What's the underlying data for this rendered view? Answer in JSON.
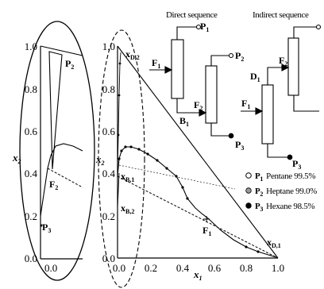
{
  "left_plot": {
    "y_axis_label": "x",
    "y_axis_label_sub": "2",
    "y_ticks": [
      "0.0",
      "0.2",
      "0.4",
      "0.6",
      "0.8",
      "1.0"
    ],
    "x_tick": "0.0",
    "points": {
      "p2": "P",
      "p2_sub": "2",
      "f2": "F",
      "f2_sub": "2",
      "p3": "P",
      "p3_sub": "3"
    }
  },
  "main_plot": {
    "y_axis_label": "x",
    "y_axis_label_sub": "2",
    "x_axis_label": "x",
    "x_axis_label_sub": "1",
    "y_ticks": [
      "0.0",
      "0.2",
      "0.4",
      "0.6",
      "0.8",
      "1.0"
    ],
    "x_ticks": [
      "0.0",
      "0.2",
      "0.4",
      "0.6",
      "0.8",
      "1.0"
    ],
    "points": {
      "xd2": "x",
      "xd2_sub": "D,2",
      "xb1": "x",
      "xb1_sub": "B,1",
      "xb2": "x",
      "xb2_sub": "B,2",
      "xd1": "x",
      "xd1_sub": "D,1",
      "f1": "F",
      "f1_sub": "1",
      "f2": "F",
      "f2_sub": "2"
    }
  },
  "direct_sequence": {
    "title": "Direct sequence",
    "labels": {
      "f1": "F",
      "f1_sub": "1",
      "b1": "B",
      "b1_sub": "1",
      "f2": "F",
      "f2_sub": "2",
      "p1": "P",
      "p1_sub": "1",
      "p2": "P",
      "p2_sub": "2",
      "p3": "P",
      "p3_sub": "3"
    }
  },
  "indirect_sequence": {
    "title": "Indirect sequence",
    "labels": {
      "f1": "F",
      "f1_sub": "1",
      "d1": "D",
      "d1_sub": "1",
      "f2": "F",
      "f2_sub": "2",
      "p3": "P",
      "p3_sub": "3"
    }
  },
  "legend": [
    {
      "symbol": "P",
      "sub": "1",
      "text": "Pentane 99.5%",
      "marker": "open-circle"
    },
    {
      "symbol": "P",
      "sub": "2",
      "text": "Heptane 99.0%",
      "marker": "grey-circle"
    },
    {
      "symbol": "P",
      "sub": "3",
      "text": "Hexane 98.5%",
      "marker": "filled-circle"
    }
  ],
  "colors": {
    "line": "#000000",
    "legend_grey": "#9a9a9a",
    "background": "#ffffff"
  }
}
